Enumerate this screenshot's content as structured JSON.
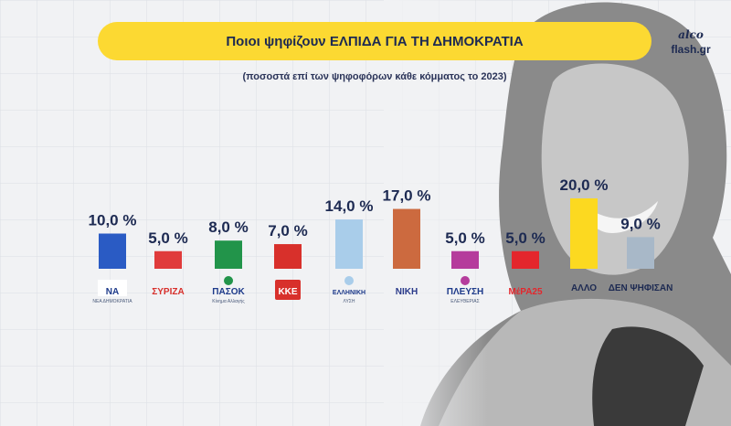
{
  "title": "Ποιοι ψηφίζουν ΕΛΠΙΔΑ ΓΙΑ ΤΗ ΔΗΜΟΚΡΑΤΙΑ",
  "subtitle": "(ποσοστά επί των ψηφοφόρων κάθε κόμματος το 2023)",
  "brand": {
    "line1": "alco",
    "line2": "flash.gr"
  },
  "chart_data": {
    "type": "bar",
    "categories": [
      "ΝΔ",
      "ΣΥΡΙΖΑ",
      "ΠΑΣΟΚ",
      "ΚΚΕ",
      "ΕΛΛΗΝΙΚΗ ΛΥΣΗ",
      "ΝΙΚΗ",
      "ΠΛΕΥΣΗ ΕΛΕΥΘΕΡΙΑΣ",
      "ΜέΡΑ25",
      "ΑΛΛΟ",
      "ΔΕΝ ΨΗΦΙΣΑΝ"
    ],
    "values": [
      10.0,
      5.0,
      8.0,
      7.0,
      14.0,
      17.0,
      5.0,
      5.0,
      20.0,
      9.0
    ],
    "value_labels": [
      "10,0 %",
      "5,0 %",
      "8,0 %",
      "7,0 %",
      "14,0 %",
      "17,0 %",
      "5,0 %",
      "5,0 %",
      "20,0 %",
      "9,0 %"
    ],
    "colors": [
      "#2a5bc4",
      "#e03b3b",
      "#22944a",
      "#d8302b",
      "#a9cdea",
      "#cc6a3f",
      "#b53c9c",
      "#e4262c",
      "#fcd920",
      "#a8b8c8"
    ],
    "logos": [
      {
        "icon": "nd-logo",
        "text": "ΝΑ",
        "sub": "ΝΕΑ ΔΗΜΟΚΡΑΤΙΑ"
      },
      {
        "icon": "syriza-logo",
        "text": "ΣΥΡΙΖΑ",
        "sub": ""
      },
      {
        "icon": "pasok-logo",
        "text": "ΠΑΣΟΚ",
        "sub": "Κίνημα Αλλαγής"
      },
      {
        "icon": "kke-logo",
        "text": "ΚΚΕ",
        "sub": ""
      },
      {
        "icon": "elliniki-lysi-logo",
        "text": "ΕΛΛΗΝΙΚΗ",
        "sub": "ΛΥΣΗ"
      },
      {
        "icon": "niki-logo",
        "text": "ΝΙΚΗ",
        "sub": ""
      },
      {
        "icon": "plefsi-logo",
        "text": "ΠΛΕΥΣΗ",
        "sub": "ΕΛΕΥΘΕΡΙΑΣ"
      },
      {
        "icon": "mera25-logo",
        "text": "ΜέΡΑ25",
        "sub": ""
      },
      {
        "icon": "",
        "text": "ΑΛΛΟ",
        "sub": ""
      },
      {
        "icon": "",
        "text": "ΔΕΝ ΨΗΦΙΣΑΝ",
        "sub": ""
      }
    ],
    "legend": "none",
    "grid": true
  }
}
